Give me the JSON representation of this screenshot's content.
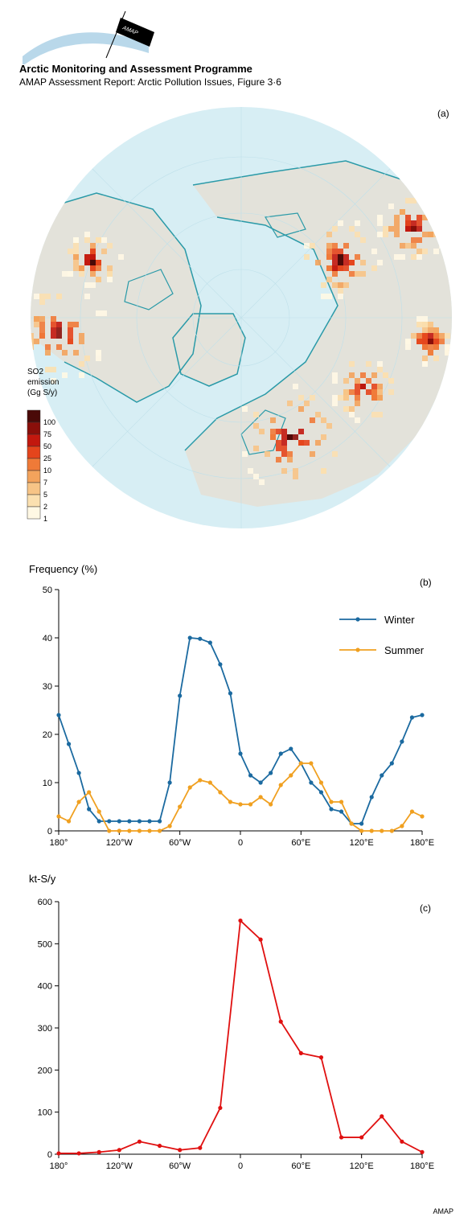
{
  "header": {
    "logo_text": "AMAP",
    "title": "Arctic Monitoring and Assessment Programme",
    "subtitle": "AMAP Assessment Report: Arctic Pollution Issues, Figure 3·6"
  },
  "footer": {
    "credit": "AMAP"
  },
  "colors": {
    "ocean": "#d7eef4",
    "land": "#e3e2da",
    "coast": "#2a9aa8",
    "winter": "#1b6aa0",
    "summer": "#f0a020",
    "emission_line": "#e01010"
  },
  "map_panel": {
    "panel_label": "(a)",
    "legend_title_1": "SO2",
    "legend_title_2": "emission",
    "legend_title_3": "(Gg S/y)",
    "legend_levels": [
      "100",
      "75",
      "50",
      "25",
      "10",
      "7",
      "5",
      "2",
      "1"
    ],
    "legend_colors": [
      "#4a0a08",
      "#8a0f0a",
      "#c2180e",
      "#e4451c",
      "#ef7a38",
      "#f3a35c",
      "#f7c486",
      "#fbe0b0",
      "#fff8e4"
    ]
  },
  "chart_data": [
    {
      "type": "line",
      "panel_label": "(b)",
      "ylabel": "Frequency (%)",
      "xlabel": "",
      "x": [
        -180,
        -170,
        -160,
        -150,
        -140,
        -130,
        -120,
        -110,
        -100,
        -90,
        -80,
        -70,
        -60,
        -50,
        -40,
        -30,
        -20,
        -10,
        0,
        10,
        20,
        30,
        40,
        50,
        60,
        70,
        80,
        90,
        100,
        110,
        120,
        130,
        140,
        150,
        160,
        170,
        180
      ],
      "series": [
        {
          "name": "Winter",
          "values": [
            24,
            18,
            12,
            4.5,
            2,
            2,
            2,
            2,
            2,
            2,
            2,
            10,
            28,
            40,
            39.8,
            39,
            34.5,
            28.5,
            16,
            11.5,
            10,
            12,
            16,
            17,
            14,
            10,
            8,
            4.5,
            4,
            1.5,
            1.5,
            7,
            11.5,
            14,
            18.5,
            23.5,
            24
          ]
        },
        {
          "name": "Summer",
          "values": [
            3,
            2,
            6,
            8,
            4,
            0,
            0,
            0,
            0,
            0,
            0,
            1,
            5,
            9,
            10.5,
            10,
            8,
            6,
            5.5,
            5.5,
            7,
            5.5,
            9.5,
            11.5,
            14,
            14,
            10,
            6,
            6,
            1.5,
            0,
            0,
            0,
            0,
            1,
            4,
            3
          ]
        }
      ],
      "ylim": [
        0,
        50
      ],
      "yticks": [
        0,
        10,
        20,
        30,
        40,
        50
      ],
      "xtick_values": [
        -180,
        -120,
        -60,
        0,
        60,
        120,
        180
      ],
      "xtick_labels": [
        "180°",
        "120°W",
        "60°W",
        "0",
        "60°E",
        "120°E",
        "180°E"
      ],
      "legend": "top-right",
      "grid": false
    },
    {
      "type": "line",
      "panel_label": "(c)",
      "ylabel": "kt-S/y",
      "xlabel": "",
      "x": [
        -180,
        -160,
        -140,
        -120,
        -100,
        -80,
        -60,
        -40,
        -20,
        0,
        20,
        40,
        60,
        80,
        100,
        120,
        140,
        160,
        180
      ],
      "series": [
        {
          "name": "",
          "values": [
            2,
            2,
            5,
            10,
            30,
            20,
            10,
            15,
            110,
            555,
            510,
            315,
            240,
            230,
            40,
            40,
            90,
            30,
            5
          ]
        }
      ],
      "ylim": [
        0,
        600
      ],
      "yticks": [
        0,
        100,
        200,
        300,
        400,
        500,
        600
      ],
      "xtick_values": [
        -180,
        -120,
        -60,
        0,
        60,
        120,
        180
      ],
      "xtick_labels": [
        "180°",
        "120°W",
        "60°W",
        "0",
        "60°E",
        "120°E",
        "180°E"
      ],
      "legend": "none",
      "grid": false
    }
  ]
}
